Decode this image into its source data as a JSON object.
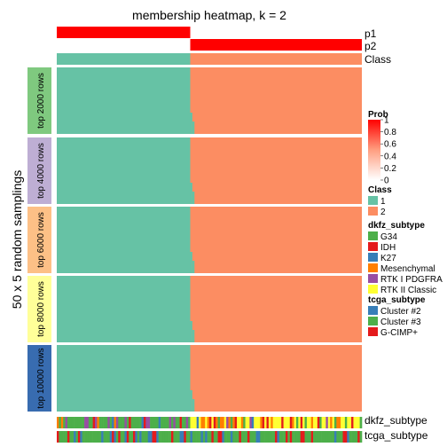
{
  "chart_data": {
    "type": "heatmap",
    "title": "membership heatmap, k = 2",
    "ylabel": "50 x 5 random samplings",
    "n_samples": 144,
    "n_class1": 63,
    "groups": [
      {
        "label": "top 2000 rows",
        "color": "#7FC97F"
      },
      {
        "label": "top 4000 rows",
        "color": "#BEAED4"
      },
      {
        "label": "top 6000 rows",
        "color": "#FDC086"
      },
      {
        "label": "top 8000 rows",
        "color": "#FFFF99"
      },
      {
        "label": "top 10000 rows",
        "color": "#386CB0"
      }
    ],
    "top_annotations": [
      {
        "label": "p1",
        "values": "prob of class 1 per sample: 1 for first 63, 0 after"
      },
      {
        "label": "p2",
        "values": "prob of class 2 per sample: 0 for first 63, 1 after"
      },
      {
        "label": "Class",
        "values": "1 for first 63, 2 after"
      }
    ],
    "bottom_annotations": [
      {
        "label": "dkfz_subtype"
      },
      {
        "label": "tcga_subtype"
      }
    ],
    "colors": {
      "class1": "#66C2A5",
      "class2": "#FC8D62",
      "prob_high": "#FF0000",
      "prob_low": "#FFFFFF"
    },
    "legends": {
      "prob": {
        "title": "Prob",
        "ticks": [
          "1",
          "0.8",
          "0.6",
          "0.4",
          "0.2",
          "0"
        ]
      },
      "class": {
        "title": "Class",
        "items": [
          {
            "label": "1",
            "color": "#66C2A5"
          },
          {
            "label": "2",
            "color": "#FC8D62"
          }
        ]
      },
      "dkfz": {
        "title": "dkfz_subtype",
        "items": [
          {
            "label": "G34",
            "color": "#4DAF4A"
          },
          {
            "label": "IDH",
            "color": "#E41A1C"
          },
          {
            "label": "K27",
            "color": "#377EB8"
          },
          {
            "label": "Mesenchymal",
            "color": "#FF7F00"
          },
          {
            "label": "RTK I PDGFRA",
            "color": "#984EA3"
          },
          {
            "label": "RTK II Classic",
            "color": "#FFFF33"
          }
        ]
      },
      "tcga": {
        "title": "tcga_subtype",
        "items": [
          {
            "label": "Cluster #2",
            "color": "#377EB8"
          },
          {
            "label": "Cluster #3",
            "color": "#4DAF4A"
          },
          {
            "label": "G-CIMP+",
            "color": "#E41A1C"
          }
        ]
      }
    }
  }
}
